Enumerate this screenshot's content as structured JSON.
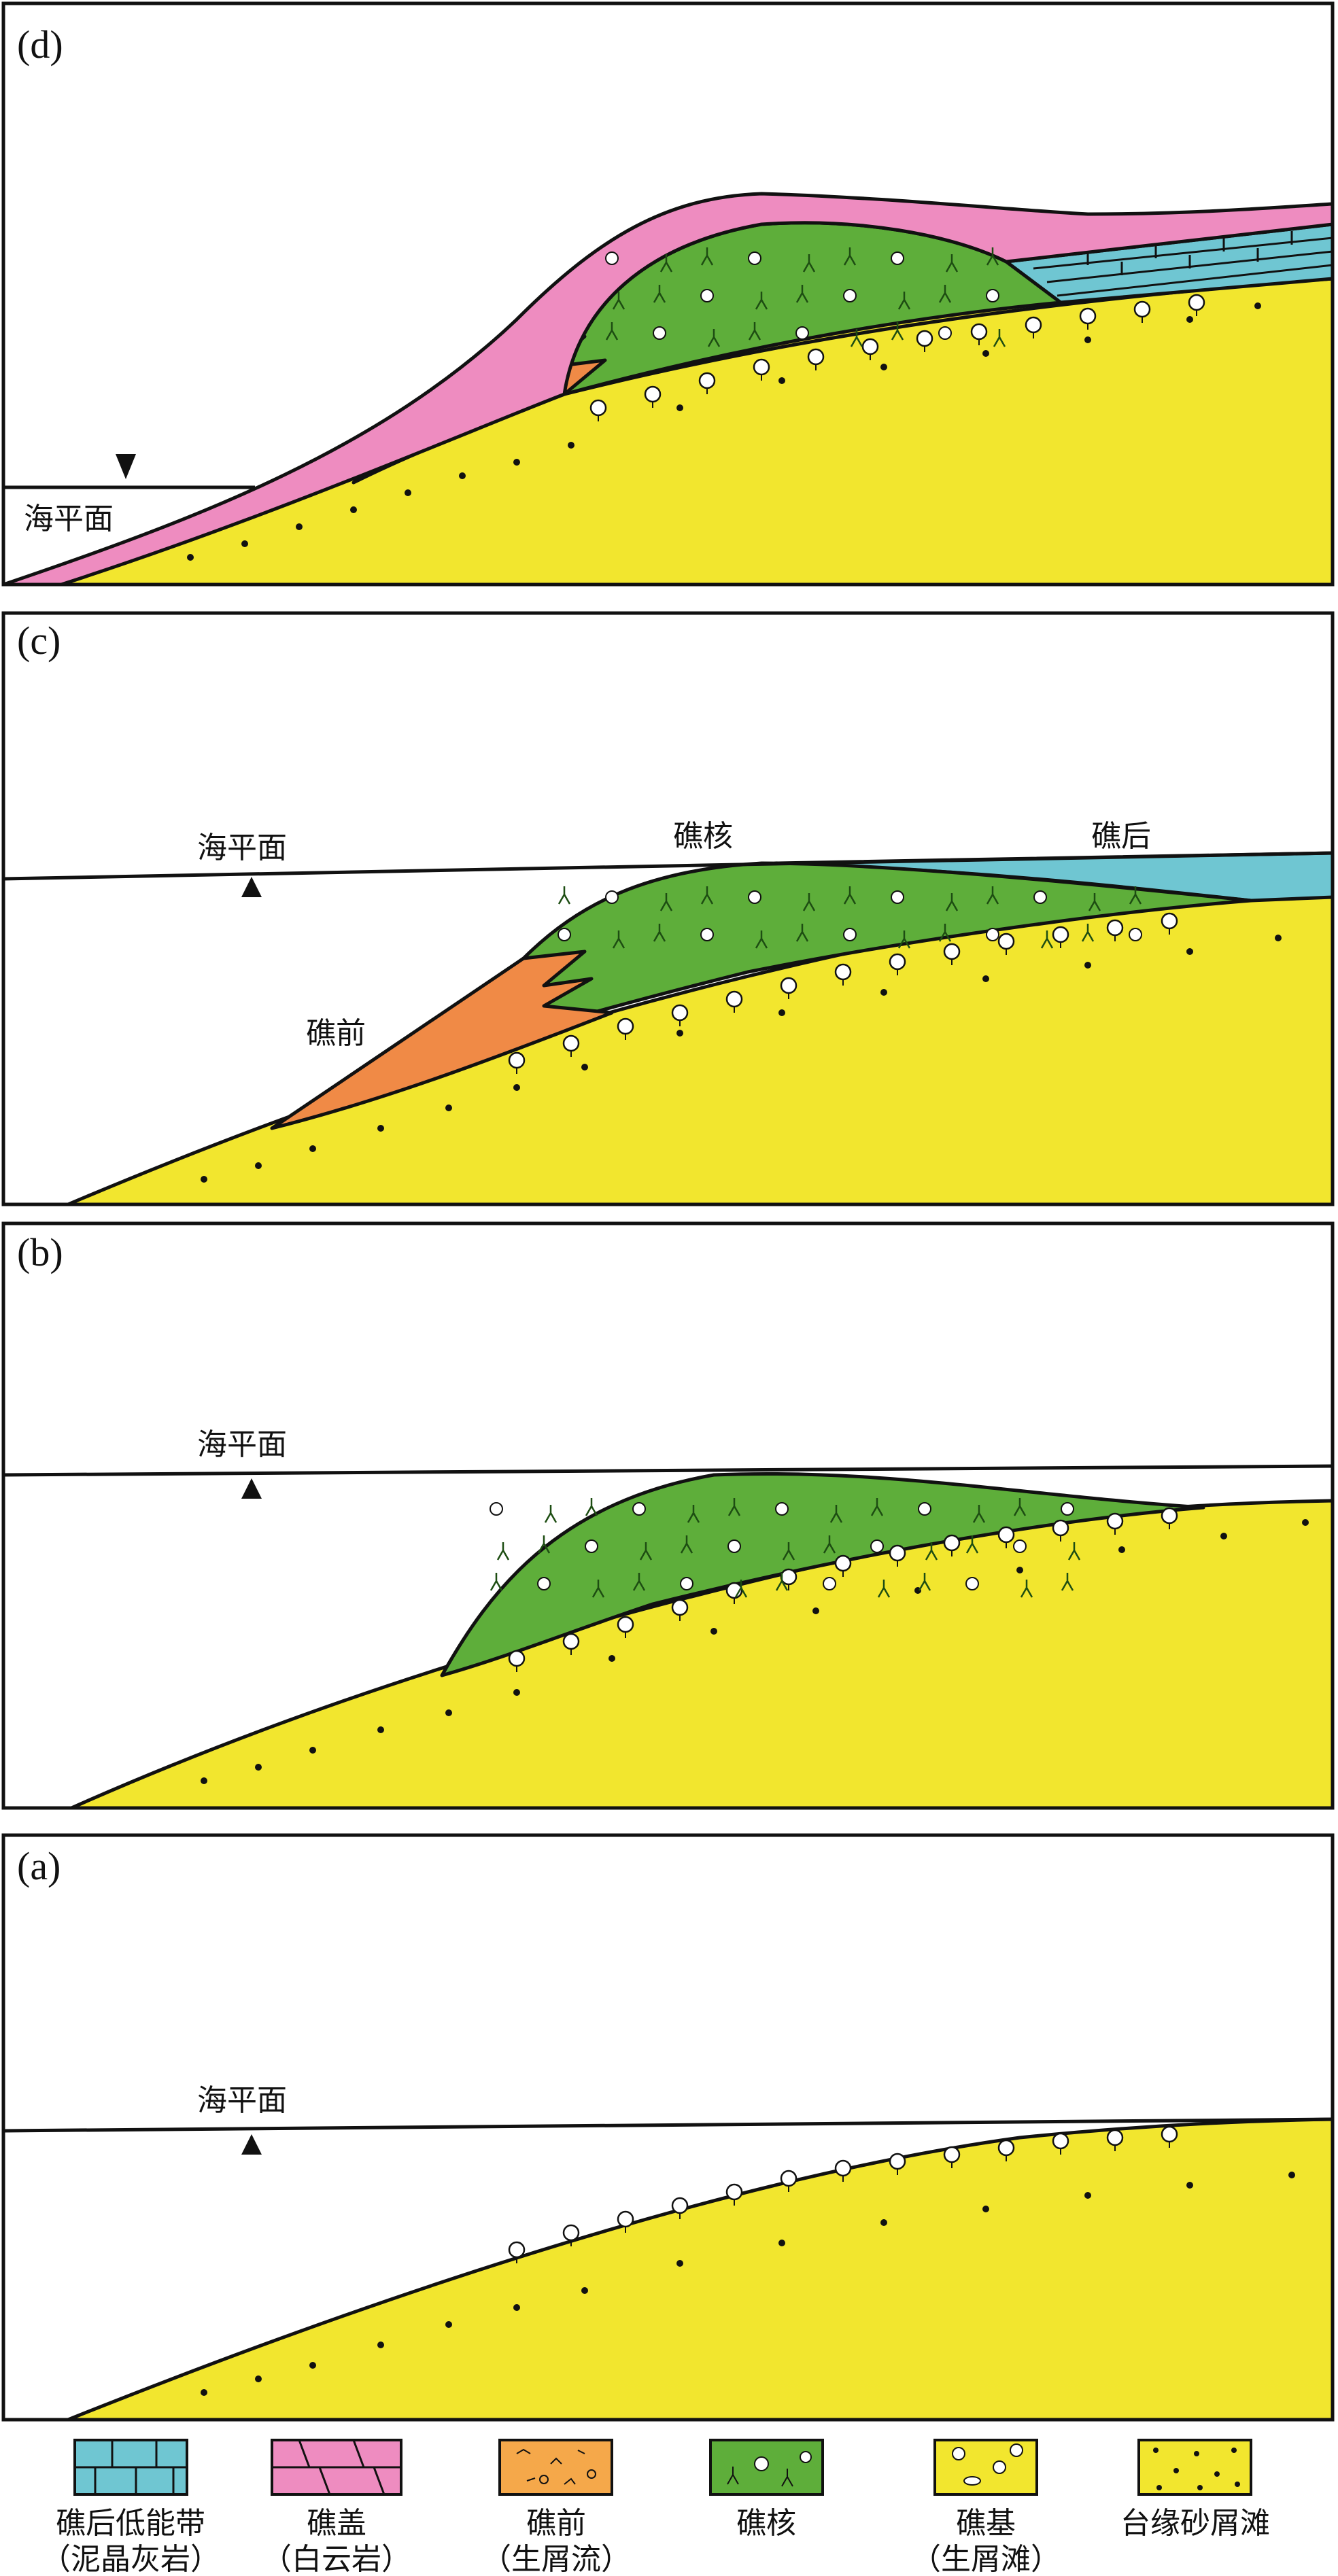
{
  "panels": {
    "d": {
      "letter": "(d)",
      "sea_level_label": "海平面"
    },
    "c": {
      "letter": "(c)",
      "sea_level_label": "海平面",
      "reef_core_label": "礁核",
      "back_reef_label": "礁后",
      "fore_reef_label": "礁前"
    },
    "b": {
      "letter": "(b)",
      "sea_level_label": "海平面"
    },
    "a": {
      "letter": "(a)",
      "sea_level_label": "海平面"
    }
  },
  "legend": [
    {
      "line1": "礁后低能带",
      "line2": "（泥晶灰岩）",
      "swatch": "blue-brick"
    },
    {
      "line1": "礁盖",
      "line2": "（白云岩）",
      "swatch": "pink-dolomite"
    },
    {
      "line1": "礁前",
      "line2": "（生屑流）",
      "swatch": "orange-debris"
    },
    {
      "line1": "礁核",
      "line2": "",
      "swatch": "green-reef"
    },
    {
      "line1": "礁基",
      "line2": "（生屑滩）",
      "swatch": "yellow-shoal"
    },
    {
      "line1": "台缘砂屑滩",
      "line2": "",
      "swatch": "yellow-dots"
    }
  ],
  "colors": {
    "yellow": "#f2e62e",
    "green": "#5eae3a",
    "orange": "#f08a46",
    "pink": "#ee8cc0",
    "blue": "#6fc6d2",
    "outline": "#111111"
  }
}
